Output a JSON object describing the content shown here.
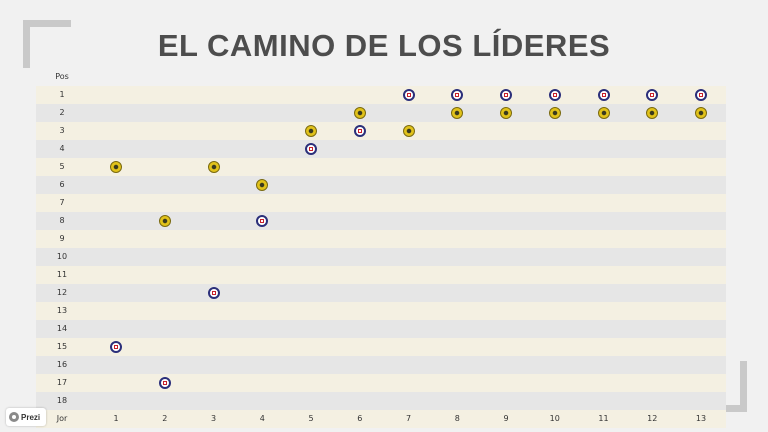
{
  "title": "EL CAMINO DE LOS LÍDERES",
  "prezi_label": "Prezi",
  "colors": {
    "america": "#e1c21a",
    "cruz_azul": "#2b2f7a"
  },
  "chart_data": {
    "type": "scatter",
    "y_header": "Pos",
    "x_header": "Jor",
    "y_labels": [
      "1",
      "2",
      "3",
      "4",
      "5",
      "6",
      "7",
      "8",
      "9",
      "10",
      "11",
      "12",
      "13",
      "14",
      "15",
      "16",
      "17",
      "18"
    ],
    "x_labels": [
      "1",
      "2",
      "3",
      "4",
      "5",
      "6",
      "7",
      "8",
      "9",
      "10",
      "11",
      "12",
      "13"
    ],
    "series": [
      {
        "icon": "club-america-crest-icon",
        "points": [
          [
            1,
            5
          ],
          [
            2,
            8
          ],
          [
            3,
            5
          ],
          [
            4,
            6
          ],
          [
            5,
            3
          ],
          [
            6,
            2
          ],
          [
            7,
            3
          ],
          [
            8,
            2
          ],
          [
            9,
            2
          ],
          [
            10,
            2
          ],
          [
            11,
            2
          ],
          [
            12,
            2
          ],
          [
            13,
            2
          ]
        ]
      },
      {
        "icon": "cruz-azul-crest-icon",
        "points": [
          [
            1,
            15
          ],
          [
            2,
            17
          ],
          [
            3,
            12
          ],
          [
            4,
            8
          ],
          [
            5,
            4
          ],
          [
            6,
            3
          ],
          [
            7,
            1
          ],
          [
            8,
            1
          ],
          [
            9,
            1
          ],
          [
            10,
            1
          ],
          [
            11,
            1
          ],
          [
            12,
            1
          ],
          [
            13,
            1
          ]
        ]
      }
    ]
  }
}
